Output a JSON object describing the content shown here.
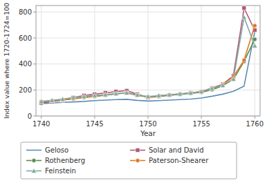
{
  "chart_data": {
    "type": "line",
    "x": [
      1740,
      1741,
      1742,
      1743,
      1744,
      1745,
      1746,
      1747,
      1748,
      1749,
      1750,
      1751,
      1752,
      1753,
      1754,
      1755,
      1756,
      1757,
      1758,
      1759,
      1760
    ],
    "series": [
      {
        "name": "Geloso",
        "color": "#5b8db8",
        "marker": "none",
        "values": [
          95,
          100,
          105,
          108,
          112,
          118,
          122,
          126,
          128,
          120,
          115,
          118,
          122,
          126,
          130,
          138,
          152,
          168,
          190,
          230,
          650
        ]
      },
      {
        "name": "Solar and David",
        "color": "#b05878",
        "marker": "square",
        "values": [
          100,
          110,
          122,
          142,
          158,
          168,
          178,
          188,
          195,
          168,
          142,
          150,
          160,
          168,
          178,
          188,
          215,
          245,
          310,
          830,
          660
        ]
      },
      {
        "name": "Rothenberg",
        "color": "#5a8a50",
        "marker": "circle",
        "values": [
          108,
          116,
          122,
          132,
          142,
          150,
          160,
          170,
          178,
          158,
          146,
          152,
          160,
          166,
          174,
          182,
          202,
          232,
          282,
          420,
          590
        ]
      },
      {
        "name": "Paterson-Shearer",
        "color": "#e07820",
        "marker": "circle",
        "values": [
          112,
          118,
          124,
          132,
          142,
          152,
          162,
          170,
          178,
          160,
          147,
          154,
          162,
          170,
          177,
          187,
          212,
          242,
          302,
          430,
          695
        ]
      },
      {
        "name": "Feinstein",
        "color": "#80aaa0",
        "marker": "triangle",
        "values": [
          110,
          120,
          130,
          142,
          150,
          158,
          164,
          172,
          178,
          162,
          150,
          157,
          164,
          170,
          177,
          187,
          212,
          237,
          284,
          760,
          540
        ]
      }
    ],
    "xlabel": "Year",
    "ylabel": "Index value where 1720-1724=100",
    "xlim": [
      1739.5,
      1760.5
    ],
    "ylim": [
      0,
      850
    ],
    "xticks": [
      1740,
      1745,
      1750,
      1755,
      1760
    ],
    "yticks": [
      0,
      200,
      400,
      600,
      800
    ],
    "grid": true,
    "legend": "bottom"
  }
}
